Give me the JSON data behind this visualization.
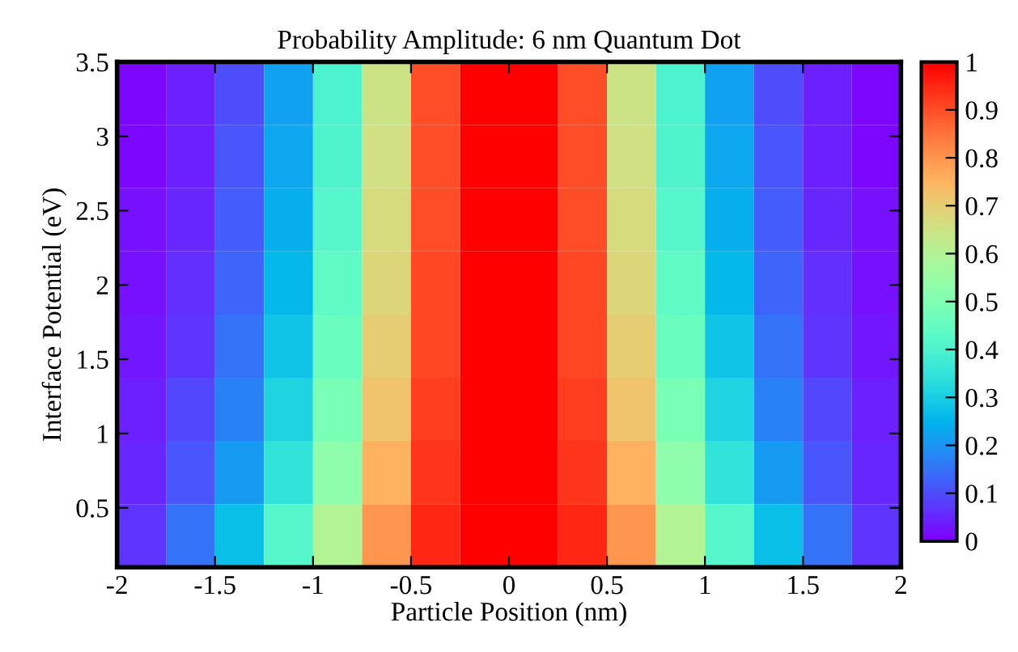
{
  "chart_data": {
    "type": "heatmap",
    "title": "Probability Amplitude: 6 nm Quantum Dot",
    "xlabel": "Particle Position (nm)",
    "ylabel": "Interface Potential (eV)",
    "xlim": [
      -2,
      2
    ],
    "xticks": [
      -2,
      -1.5,
      -1,
      -0.5,
      0,
      0.5,
      1,
      1.5,
      2
    ],
    "ylim": [
      0.1,
      3.5
    ],
    "yticks": [
      0.5,
      1,
      1.5,
      2,
      2.5,
      3,
      3.5
    ],
    "clim": [
      0,
      1
    ],
    "cticks": [
      0,
      0.1,
      0.2,
      0.3,
      0.4,
      0.5,
      0.6,
      0.7,
      0.8,
      0.9,
      1
    ],
    "grid": false,
    "cells": [
      [
        0.01,
        0.04,
        0.1,
        0.22,
        0.4,
        0.65,
        0.9,
        1.0,
        1.0,
        0.9,
        0.65,
        0.4,
        0.22,
        0.1,
        0.04,
        0.01
      ],
      [
        0.01,
        0.04,
        0.11,
        0.23,
        0.41,
        0.66,
        0.9,
        1.0,
        1.0,
        0.9,
        0.66,
        0.41,
        0.23,
        0.11,
        0.04,
        0.01
      ],
      [
        0.02,
        0.05,
        0.12,
        0.24,
        0.42,
        0.67,
        0.9,
        1.0,
        1.0,
        0.9,
        0.67,
        0.42,
        0.24,
        0.12,
        0.05,
        0.02
      ],
      [
        0.02,
        0.06,
        0.13,
        0.26,
        0.44,
        0.68,
        0.91,
        1.0,
        1.0,
        0.91,
        0.68,
        0.44,
        0.26,
        0.13,
        0.06,
        0.02
      ],
      [
        0.03,
        0.07,
        0.15,
        0.28,
        0.46,
        0.7,
        0.91,
        1.0,
        1.0,
        0.91,
        0.7,
        0.46,
        0.28,
        0.15,
        0.07,
        0.03
      ],
      [
        0.04,
        0.09,
        0.17,
        0.31,
        0.49,
        0.72,
        0.92,
        1.0,
        1.0,
        0.92,
        0.72,
        0.49,
        0.31,
        0.17,
        0.09,
        0.04
      ],
      [
        0.05,
        0.11,
        0.21,
        0.35,
        0.53,
        0.75,
        0.93,
        1.0,
        1.0,
        0.93,
        0.75,
        0.53,
        0.35,
        0.21,
        0.11,
        0.05
      ],
      [
        0.07,
        0.15,
        0.27,
        0.42,
        0.6,
        0.8,
        0.95,
        1.0,
        1.0,
        0.95,
        0.8,
        0.6,
        0.42,
        0.27,
        0.15,
        0.07
      ]
    ]
  }
}
